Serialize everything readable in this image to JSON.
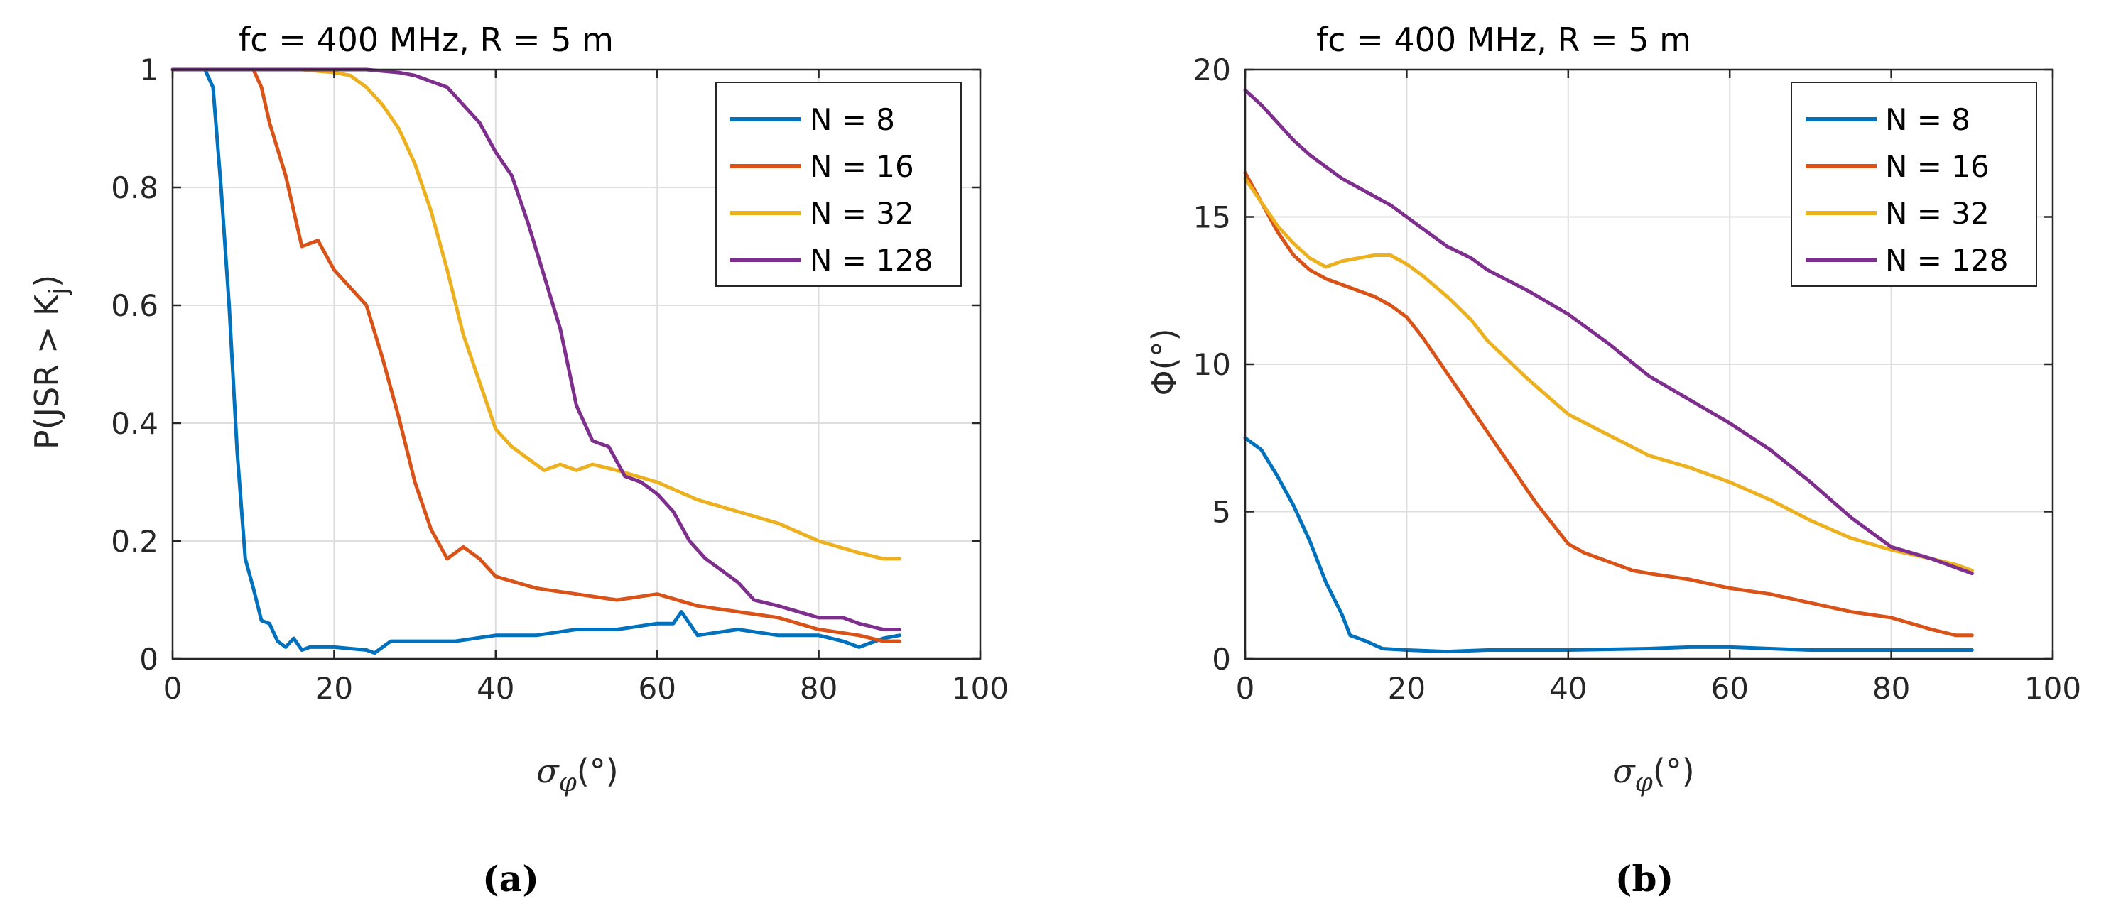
{
  "chart_data": [
    {
      "type": "line",
      "title": "fc = 400 MHz, R = 5 m",
      "xlabel": "σ_φ(°)",
      "xlabel_main": "σ",
      "xlabel_sub": "φ",
      "xlabel_unit": "(°)",
      "ylabel": "P(JSR > K_j)",
      "ylabel_main": "P(JSR > K",
      "ylabel_sub": "j",
      "ylabel_end": ")",
      "xlim": [
        0,
        100
      ],
      "ylim": [
        0,
        1
      ],
      "xticks": [
        0,
        20,
        40,
        60,
        80,
        100
      ],
      "yticks": [
        0,
        0.2,
        0.4,
        0.6,
        0.8,
        1
      ],
      "xtick_labels": [
        "0",
        "20",
        "40",
        "60",
        "80",
        "100"
      ],
      "ytick_labels": [
        "0",
        "0.2",
        "0.4",
        "0.6",
        "0.8",
        "1"
      ],
      "grid": true,
      "legend_position": "top-right",
      "caption": "(a)",
      "series": [
        {
          "name": "N = 8",
          "color": "#0072BD",
          "x": [
            0,
            4,
            5,
            6,
            7,
            8,
            9,
            10,
            11,
            12,
            13,
            14,
            15,
            16,
            17,
            20,
            24,
            25,
            27,
            30,
            35,
            40,
            45,
            50,
            55,
            60,
            62,
            63,
            65,
            70,
            75,
            80,
            83,
            85,
            88,
            90
          ],
          "y": [
            1,
            1,
            0.97,
            0.8,
            0.6,
            0.35,
            0.17,
            0.12,
            0.065,
            0.06,
            0.03,
            0.02,
            0.035,
            0.015,
            0.02,
            0.02,
            0.015,
            0.01,
            0.03,
            0.03,
            0.03,
            0.04,
            0.04,
            0.05,
            0.05,
            0.06,
            0.06,
            0.08,
            0.04,
            0.05,
            0.04,
            0.04,
            0.03,
            0.02,
            0.035,
            0.04
          ]
        },
        {
          "name": "N = 16",
          "color": "#D95319",
          "x": [
            0,
            10,
            11,
            12,
            14,
            16,
            18,
            20,
            22,
            24,
            26,
            28,
            30,
            32,
            34,
            36,
            38,
            40,
            45,
            50,
            55,
            60,
            65,
            70,
            75,
            80,
            85,
            88,
            90
          ],
          "y": [
            1,
            1,
            0.97,
            0.91,
            0.82,
            0.7,
            0.71,
            0.66,
            0.63,
            0.6,
            0.51,
            0.41,
            0.3,
            0.22,
            0.17,
            0.19,
            0.17,
            0.14,
            0.12,
            0.11,
            0.1,
            0.11,
            0.09,
            0.08,
            0.07,
            0.05,
            0.04,
            0.03,
            0.03
          ]
        },
        {
          "name": "N = 32",
          "color": "#EDB120",
          "x": [
            0,
            16,
            20,
            22,
            24,
            26,
            28,
            30,
            32,
            34,
            36,
            38,
            40,
            42,
            44,
            46,
            48,
            50,
            52,
            55,
            60,
            65,
            70,
            75,
            80,
            85,
            88,
            90
          ],
          "y": [
            1,
            1,
            0.995,
            0.99,
            0.97,
            0.94,
            0.9,
            0.84,
            0.76,
            0.66,
            0.55,
            0.47,
            0.39,
            0.36,
            0.34,
            0.32,
            0.33,
            0.32,
            0.33,
            0.32,
            0.3,
            0.27,
            0.25,
            0.23,
            0.2,
            0.18,
            0.17,
            0.17
          ]
        },
        {
          "name": "N = 128",
          "color": "#7E2F8E",
          "x": [
            0,
            24,
            28,
            30,
            32,
            34,
            36,
            38,
            40,
            42,
            44,
            46,
            48,
            50,
            52,
            54,
            56,
            58,
            60,
            62,
            64,
            66,
            68,
            70,
            72,
            75,
            80,
            83,
            85,
            88,
            90
          ],
          "y": [
            1,
            1,
            0.995,
            0.99,
            0.98,
            0.97,
            0.94,
            0.91,
            0.86,
            0.82,
            0.74,
            0.65,
            0.56,
            0.43,
            0.37,
            0.36,
            0.31,
            0.3,
            0.28,
            0.25,
            0.2,
            0.17,
            0.15,
            0.13,
            0.1,
            0.09,
            0.07,
            0.07,
            0.06,
            0.05,
            0.05
          ]
        }
      ]
    },
    {
      "type": "line",
      "title": "fc = 400 MHz, R = 5 m",
      "xlabel": "σ_φ(°)",
      "xlabel_main": "σ",
      "xlabel_sub": "φ",
      "xlabel_unit": "(°)",
      "ylabel": "Φ(°)",
      "ylabel_main": "Φ(°)",
      "xlim": [
        0,
        100
      ],
      "ylim": [
        0,
        20
      ],
      "xticks": [
        0,
        20,
        40,
        60,
        80,
        100
      ],
      "yticks": [
        0,
        5,
        10,
        15,
        20
      ],
      "xtick_labels": [
        "0",
        "20",
        "40",
        "60",
        "80",
        "100"
      ],
      "ytick_labels": [
        "0",
        "5",
        "10",
        "15",
        "20"
      ],
      "grid": true,
      "legend_position": "top-right",
      "caption": "(b)",
      "series": [
        {
          "name": "N = 8",
          "color": "#0072BD",
          "x": [
            0,
            2,
            4,
            6,
            8,
            10,
            12,
            13,
            15,
            17,
            20,
            25,
            30,
            40,
            50,
            55,
            60,
            65,
            70,
            80,
            85,
            90
          ],
          "y": [
            7.5,
            7.1,
            6.2,
            5.2,
            4.0,
            2.6,
            1.5,
            0.8,
            0.6,
            0.35,
            0.3,
            0.25,
            0.3,
            0.3,
            0.35,
            0.4,
            0.4,
            0.35,
            0.3,
            0.3,
            0.3,
            0.3
          ]
        },
        {
          "name": "N = 16",
          "color": "#D95319",
          "x": [
            0,
            2,
            4,
            6,
            8,
            10,
            12,
            14,
            16,
            18,
            20,
            22,
            24,
            26,
            28,
            30,
            32,
            34,
            36,
            38,
            40,
            42,
            44,
            46,
            48,
            50,
            55,
            60,
            65,
            70,
            75,
            80,
            85,
            88,
            90
          ],
          "y": [
            16.5,
            15.5,
            14.5,
            13.7,
            13.2,
            12.9,
            12.7,
            12.5,
            12.3,
            12.0,
            11.6,
            10.9,
            10.1,
            9.3,
            8.5,
            7.7,
            6.9,
            6.1,
            5.3,
            4.6,
            3.9,
            3.6,
            3.4,
            3.2,
            3.0,
            2.9,
            2.7,
            2.4,
            2.2,
            1.9,
            1.6,
            1.4,
            1.0,
            0.8,
            0.8
          ]
        },
        {
          "name": "N = 32",
          "color": "#EDB120",
          "x": [
            0,
            2,
            4,
            6,
            8,
            10,
            12,
            14,
            16,
            18,
            20,
            22,
            25,
            28,
            30,
            35,
            40,
            45,
            50,
            55,
            60,
            65,
            70,
            75,
            80,
            85,
            88,
            90
          ],
          "y": [
            16.3,
            15.5,
            14.7,
            14.1,
            13.6,
            13.3,
            13.5,
            13.6,
            13.7,
            13.7,
            13.4,
            13.0,
            12.3,
            11.5,
            10.8,
            9.5,
            8.3,
            7.6,
            6.9,
            6.5,
            6.0,
            5.4,
            4.7,
            4.1,
            3.7,
            3.4,
            3.2,
            3.0
          ]
        },
        {
          "name": "N = 128",
          "color": "#7E2F8E",
          "x": [
            0,
            2,
            4,
            6,
            8,
            10,
            12,
            14,
            16,
            18,
            20,
            22,
            25,
            28,
            30,
            35,
            40,
            45,
            50,
            55,
            60,
            65,
            70,
            75,
            80,
            85,
            88,
            90
          ],
          "y": [
            19.3,
            18.8,
            18.2,
            17.6,
            17.1,
            16.7,
            16.3,
            16.0,
            15.7,
            15.4,
            15.0,
            14.6,
            14.0,
            13.6,
            13.2,
            12.5,
            11.7,
            10.7,
            9.6,
            8.8,
            8.0,
            7.1,
            6.0,
            4.8,
            3.8,
            3.4,
            3.1,
            2.9
          ]
        }
      ]
    }
  ]
}
